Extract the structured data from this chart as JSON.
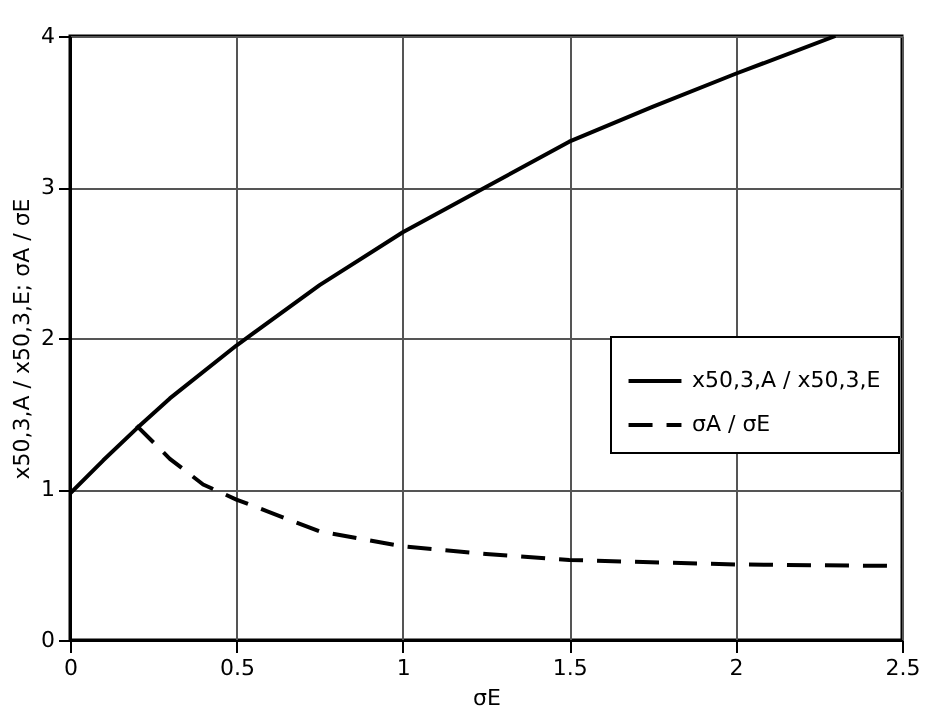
{
  "chart_data": {
    "type": "line",
    "xlabel": "σE",
    "ylabel": "x50,3,A / x50,3,E; σA / σE",
    "xlim": [
      0,
      2.5
    ],
    "xticks": [
      0,
      0.5,
      1,
      1.5,
      2,
      2.5
    ],
    "ylim": [
      0,
      4
    ],
    "yticks": [
      0,
      1,
      2,
      3,
      4
    ],
    "grid": true,
    "legend": "right",
    "series": [
      {
        "name": "x50,3,A / x50,3,E",
        "color": "#000000",
        "line_style": "solid",
        "x": [
          0,
          0.1,
          0.2,
          0.3,
          0.5,
          0.75,
          1,
          1.25,
          1.5,
          1.75,
          2,
          2.3
        ],
        "values": [
          0.97,
          1.19,
          1.4,
          1.6,
          1.95,
          2.35,
          2.7,
          3.0,
          3.3,
          3.53,
          3.75,
          4.0
        ]
      },
      {
        "name": "σA / σE",
        "color": "#000000",
        "line_style": "dashed",
        "x": [
          0.2,
          0.3,
          0.4,
          0.5,
          0.75,
          1,
          1.25,
          1.5,
          2,
          2.5
        ],
        "values": [
          1.42,
          1.2,
          1.03,
          0.93,
          0.72,
          0.62,
          0.57,
          0.53,
          0.5,
          0.49
        ]
      }
    ]
  }
}
